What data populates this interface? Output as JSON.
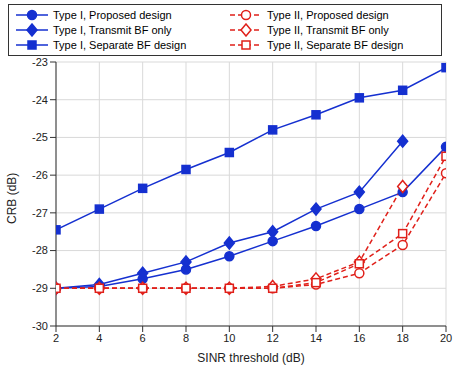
{
  "chart_data": {
    "type": "line",
    "x_label": "SINR threshold (dB)",
    "y_label": "CRB (dB)",
    "x": [
      2,
      4,
      6,
      8,
      10,
      12,
      14,
      16,
      18,
      20
    ],
    "xlim": [
      2,
      20
    ],
    "xticks": [
      2,
      4,
      6,
      8,
      10,
      12,
      14,
      16,
      18,
      20
    ],
    "ylim": [
      -30,
      -23
    ],
    "yticks": [
      -30,
      -29,
      -28,
      -27,
      -26,
      -25,
      -24,
      -23
    ],
    "grid": true,
    "legend": "top",
    "series": [
      {
        "name": "Type I, Proposed design",
        "color": "#1530d0",
        "marker": "circle",
        "line_style": "solid",
        "values": [
          -29.0,
          -28.95,
          -28.75,
          -28.5,
          -28.15,
          -27.75,
          -27.35,
          -26.9,
          -26.45,
          -25.25
        ]
      },
      {
        "name": "Type II, Proposed design",
        "color": "#e0201a",
        "marker": "circle-open",
        "line_style": "dashed",
        "values": [
          -29.0,
          -29.0,
          -29.0,
          -29.0,
          -29.0,
          -29.0,
          -28.9,
          -28.6,
          -27.85,
          -25.95
        ]
      },
      {
        "name": "Type I, Transmit BF only",
        "color": "#1530d0",
        "marker": "diamond",
        "line_style": "solid",
        "values": [
          -29.0,
          -28.9,
          -28.6,
          -28.3,
          -27.8,
          -27.5,
          -26.9,
          -26.45,
          -25.1,
          null
        ]
      },
      {
        "name": "Type II, Transmit BF only",
        "color": "#e0201a",
        "marker": "diamond-open",
        "line_style": "dashed",
        "values": [
          -29.0,
          -29.0,
          -29.0,
          -29.0,
          -29.0,
          -28.95,
          -28.75,
          -28.3,
          -26.3,
          null
        ]
      },
      {
        "name": "Type I, Separate BF design",
        "color": "#1530d0",
        "marker": "square",
        "line_style": "solid",
        "values": [
          -27.45,
          -26.9,
          -26.35,
          -25.85,
          -25.4,
          -24.8,
          -24.4,
          -23.95,
          -23.75,
          -23.15
        ]
      },
      {
        "name": "Type II, Separate BF design",
        "color": "#e0201a",
        "marker": "square-open",
        "line_style": "dashed",
        "values": [
          -29.0,
          -29.0,
          -29.0,
          -29.0,
          -29.0,
          -29.0,
          -28.85,
          -28.35,
          -27.55,
          -25.5
        ]
      }
    ]
  }
}
